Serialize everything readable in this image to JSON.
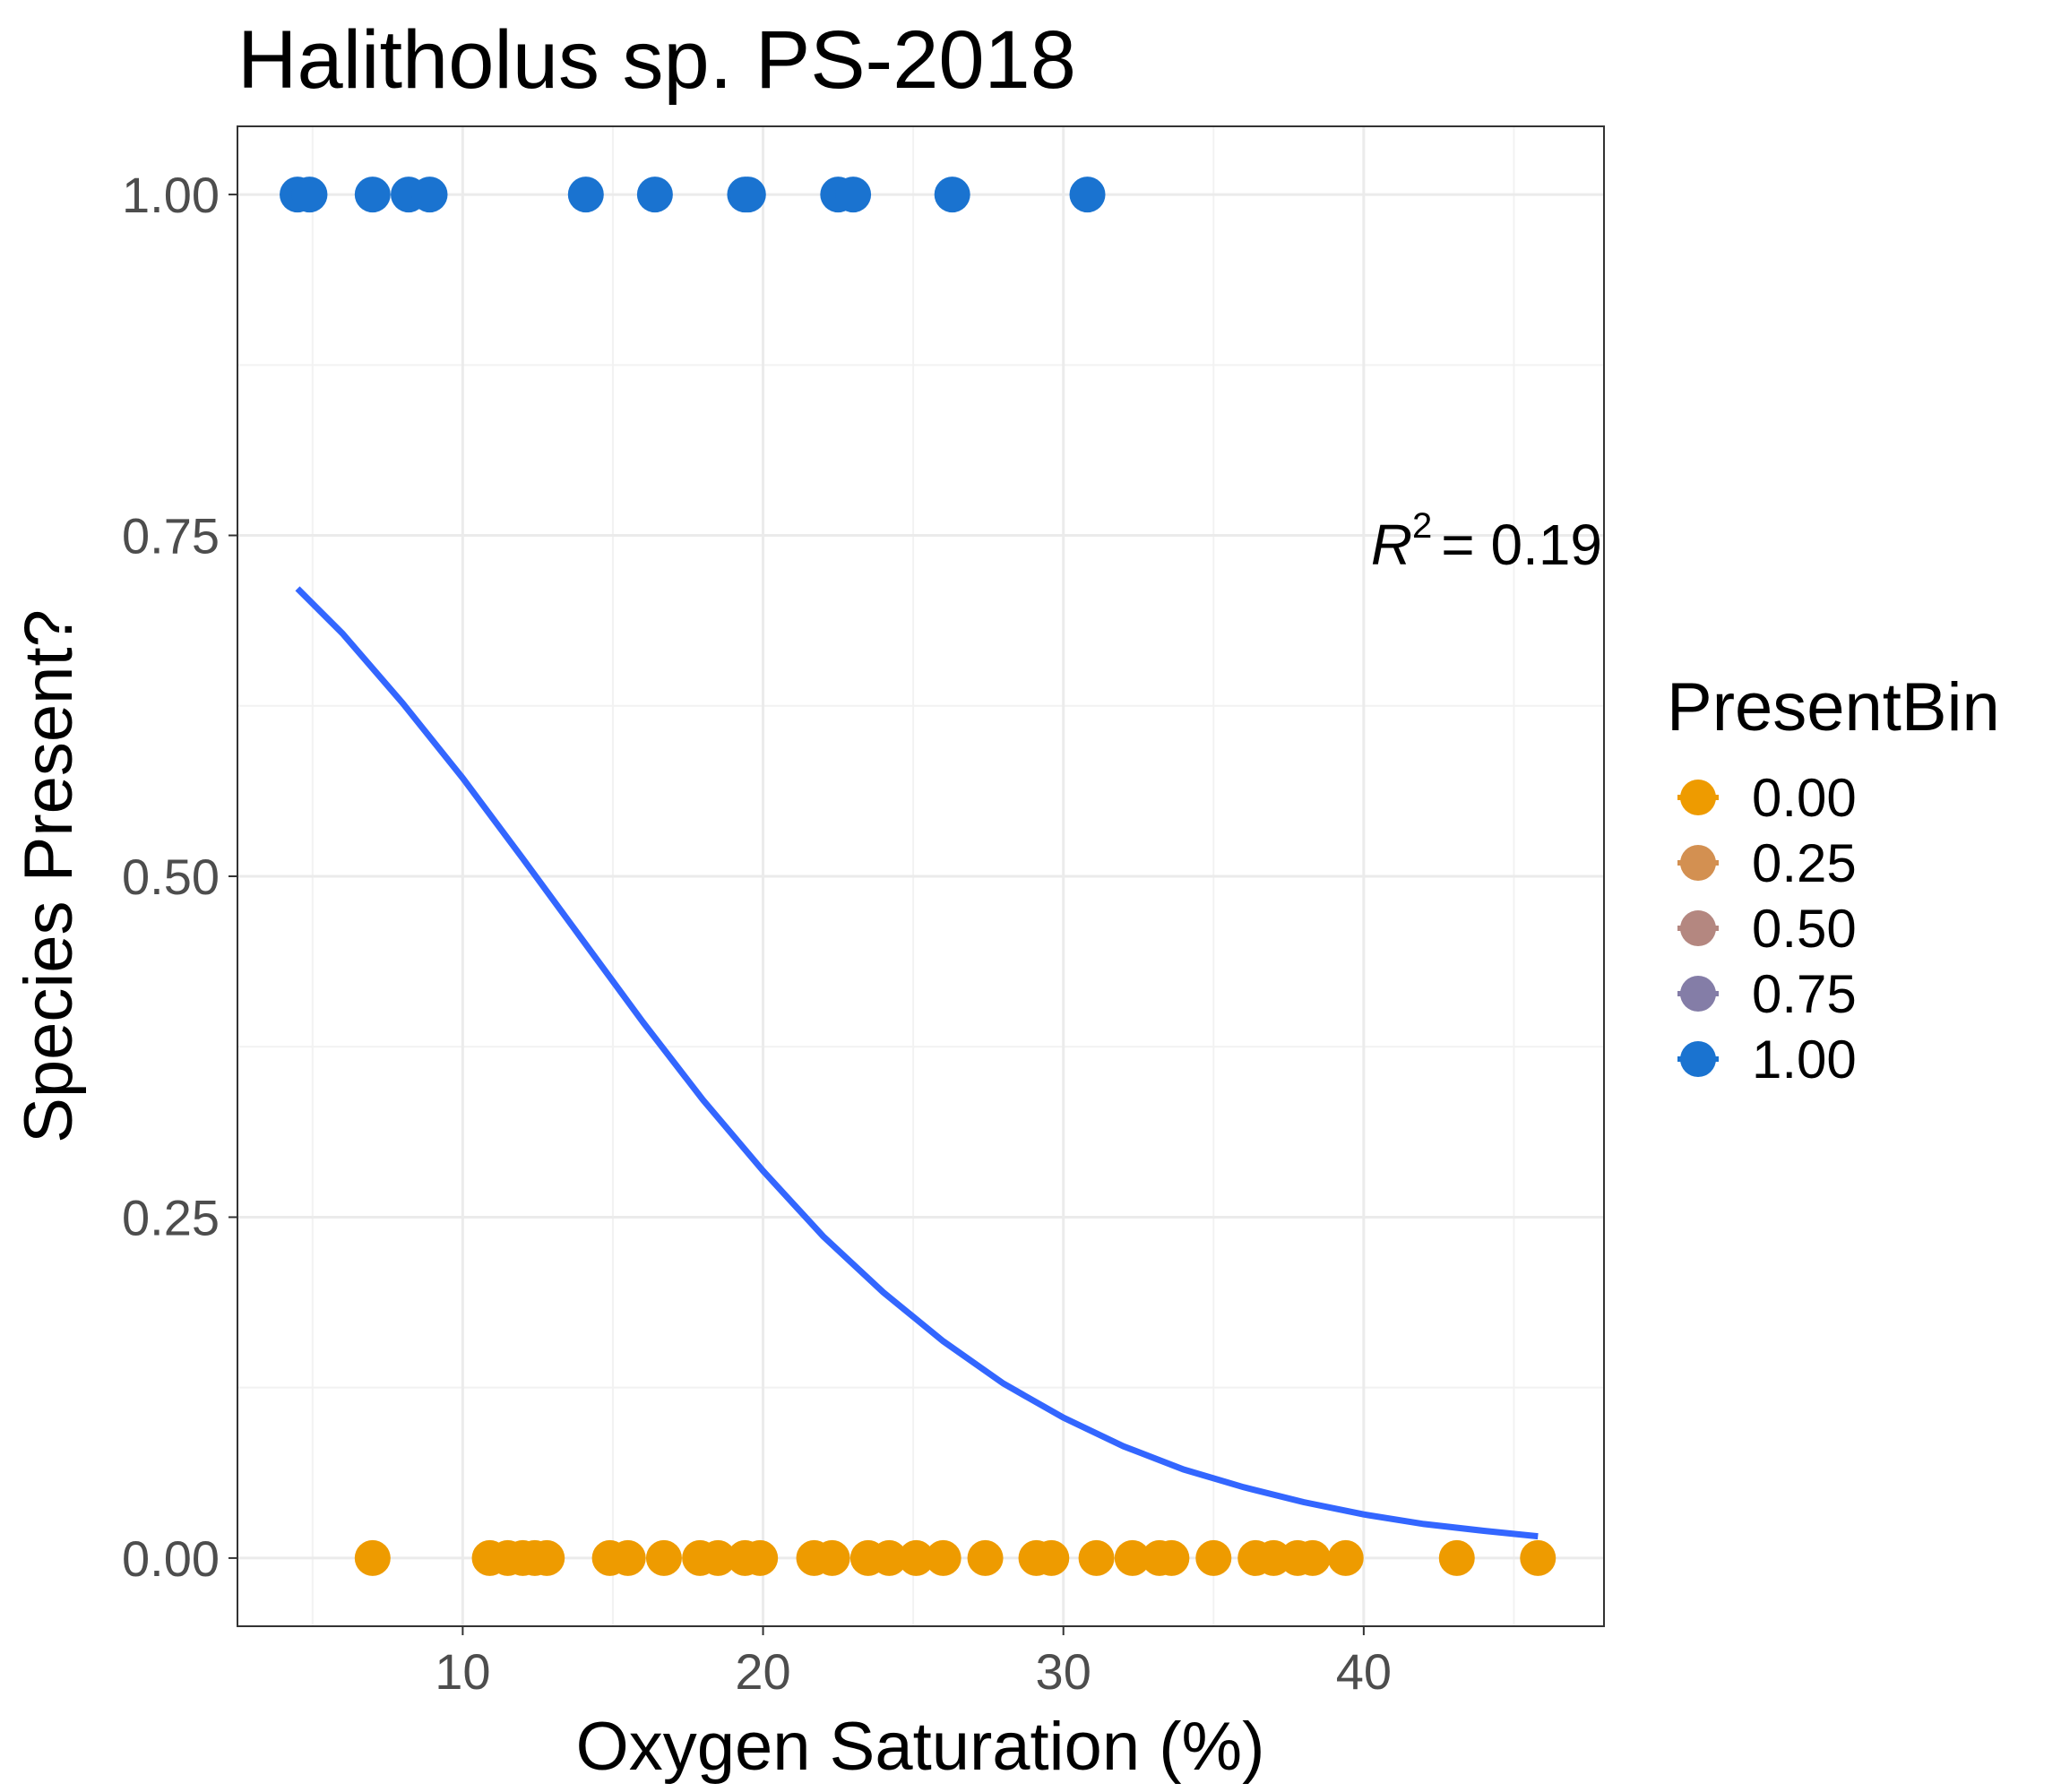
{
  "chart_data": {
    "type": "scatter",
    "title": "Halitholus sp. PS-2018",
    "xlabel": "Oxygen Saturation (%)",
    "ylabel": "Species Present?",
    "xlim": [
      2.5,
      48
    ],
    "ylim": [
      -0.05,
      1.05
    ],
    "x_ticks": [
      10,
      20,
      30,
      40
    ],
    "x_tick_labels": [
      "10",
      "20",
      "30",
      "40"
    ],
    "y_ticks": [
      0,
      0.25,
      0.5,
      0.75,
      1
    ],
    "y_tick_labels": [
      "0.00",
      "0.25",
      "0.50",
      "0.75",
      "1.00"
    ],
    "grid": true,
    "annotation": {
      "r2_symbol": "R",
      "r2_exponent": "2",
      "r2_value": "= 0.19"
    },
    "legend": {
      "title": "PresentBin",
      "placement": "right",
      "entries": [
        {
          "label": "0.00",
          "color": "#EE9B00"
        },
        {
          "label": "0.25",
          "color": "#D39051"
        },
        {
          "label": "0.50",
          "color": "#B48780"
        },
        {
          "label": "0.75",
          "color": "#847DA7"
        },
        {
          "label": "1.00",
          "color": "#1A73D0"
        }
      ]
    },
    "series": [
      {
        "name": "1.00",
        "color": "#1A73D0",
        "y": 1,
        "x": [
          4.5,
          4.9,
          7.0,
          8.2,
          8.9,
          14.1,
          16.4,
          19.4,
          19.5,
          22.5,
          23.0,
          26.3,
          30.8
        ]
      },
      {
        "name": "0.00",
        "color": "#EE9B00",
        "y": 0,
        "x": [
          7.0,
          10.9,
          11.5,
          12.0,
          12.4,
          12.8,
          14.9,
          15.5,
          16.7,
          17.9,
          18.5,
          19.4,
          19.9,
          21.7,
          22.3,
          23.5,
          24.2,
          25.1,
          26.0,
          27.4,
          29.1,
          29.6,
          31.1,
          32.3,
          33.2,
          33.6,
          35.0,
          36.4,
          37.0,
          37.8,
          38.3,
          39.4,
          43.1,
          45.8
        ]
      }
    ],
    "fit_line": {
      "type": "logistic",
      "color": "#3366FF",
      "x": [
        4.5,
        6,
        8,
        10,
        12,
        14,
        16,
        18,
        20,
        22,
        24,
        26,
        28,
        30,
        32,
        34,
        36,
        38,
        40,
        42,
        44,
        45.8
      ],
      "y": [
        0.711,
        0.678,
        0.627,
        0.572,
        0.513,
        0.453,
        0.393,
        0.336,
        0.284,
        0.236,
        0.195,
        0.159,
        0.128,
        0.103,
        0.082,
        0.065,
        0.052,
        0.041,
        0.032,
        0.025,
        0.02,
        0.016
      ]
    }
  }
}
